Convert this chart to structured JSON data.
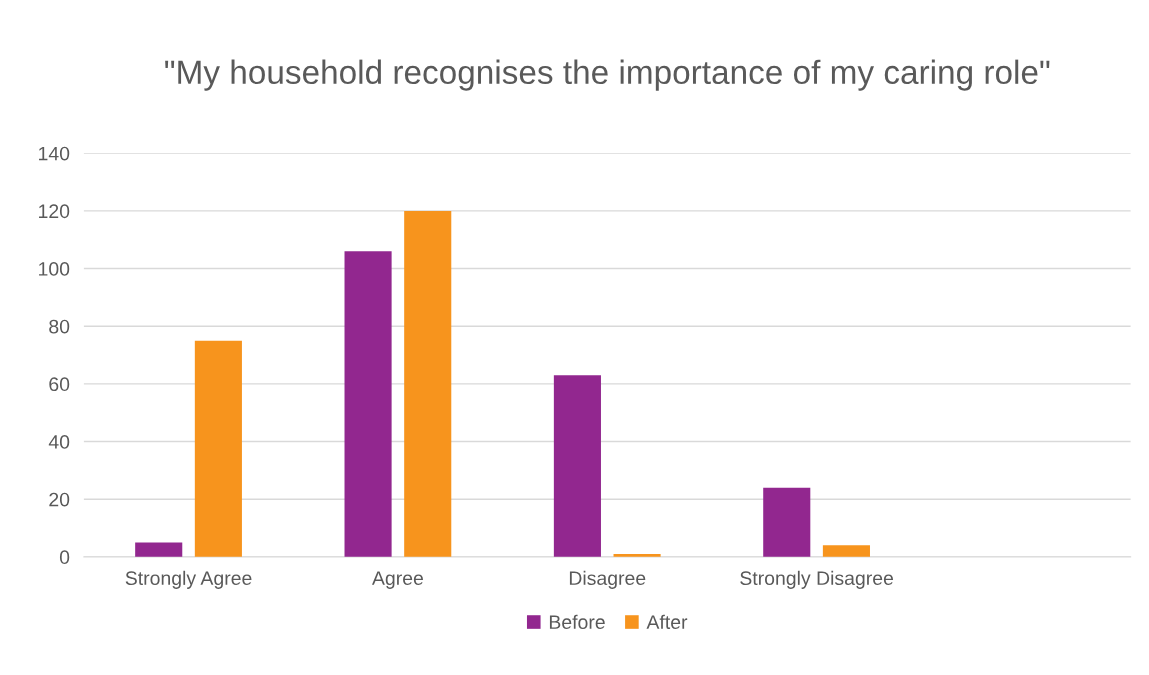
{
  "chart_data": {
    "type": "bar",
    "title": "\"My household recognises the importance of my caring role\"",
    "categories": [
      "Strongly Agree",
      "Agree",
      "Disagree",
      "Strongly Disagree",
      null
    ],
    "series": [
      {
        "name": "Before",
        "color": "#92278f",
        "values": [
          5,
          106,
          63,
          24,
          null
        ]
      },
      {
        "name": "After",
        "color": "#f7941d",
        "values": [
          75,
          120,
          1,
          4,
          null
        ]
      }
    ],
    "ylim": [
      0,
      140
    ],
    "yticks": [
      0,
      20,
      40,
      60,
      80,
      100,
      120,
      140
    ],
    "grid": "y",
    "legend": "bottom"
  }
}
